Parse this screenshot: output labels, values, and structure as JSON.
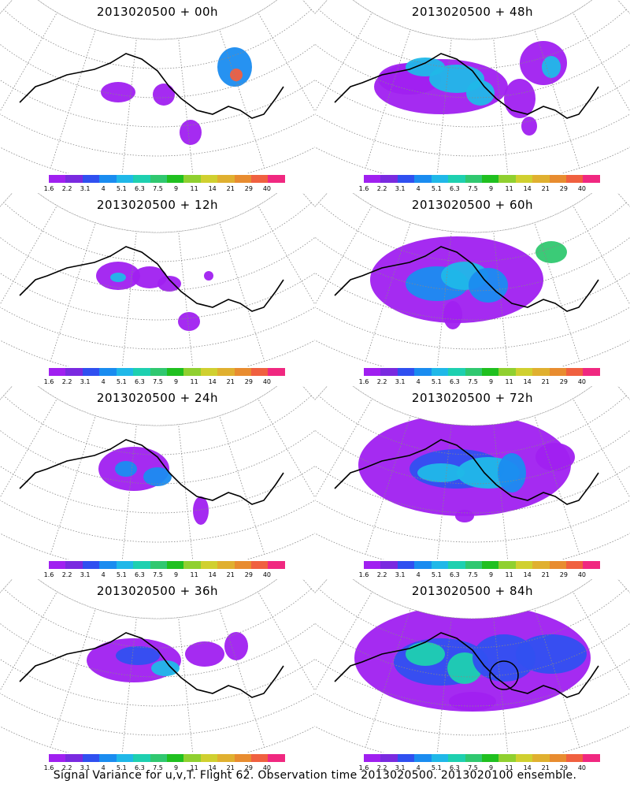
{
  "panels": [
    {
      "title": "2013020500 + 00h"
    },
    {
      "title": "2013020500 + 48h"
    },
    {
      "title": "2013020500 + 12h"
    },
    {
      "title": "2013020500 + 60h"
    },
    {
      "title": "2013020500 + 24h"
    },
    {
      "title": "2013020500 + 72h"
    },
    {
      "title": "2013020500 + 36h"
    },
    {
      "title": "2013020500 + 84h"
    }
  ],
  "colorbar": {
    "labels": [
      "1.6",
      "2.2",
      "3.1",
      "4",
      "5.1",
      "6.3",
      "7.5",
      "9",
      "11",
      "14",
      "21",
      "29",
      "40"
    ],
    "colors": [
      "#a020f0",
      "#7a2ae0",
      "#3050f0",
      "#1a8cf0",
      "#20b8e8",
      "#1ed0b0",
      "#30c870",
      "#20c020",
      "#90d030",
      "#d0d030",
      "#e0b030",
      "#e88c30",
      "#f06040",
      "#f02880"
    ]
  },
  "caption": "Signal Variance for u,v,T. Flight 62. Observation time 2013020500. 2013020100 ensemble."
}
